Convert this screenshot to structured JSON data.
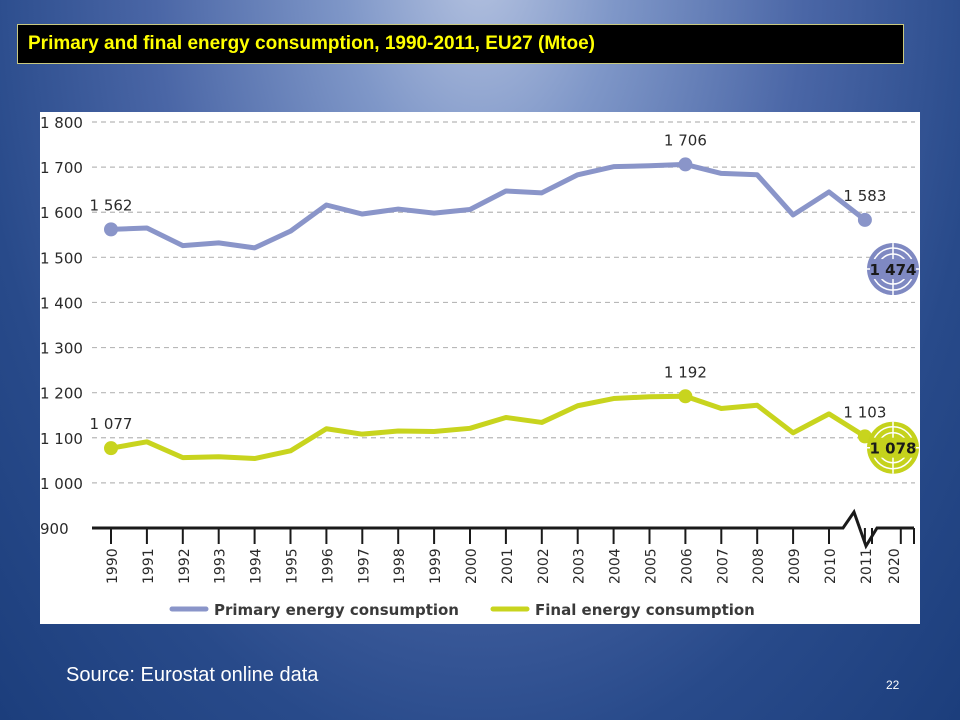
{
  "slide": {
    "title": "Primary and final energy consumption, 1990-2011, EU27 (Mtoe)",
    "source": "Source: Eurostat online data",
    "page_number": "22"
  },
  "chart_data": {
    "type": "line",
    "title": "",
    "xlabel": "",
    "ylabel": "",
    "x": [
      "1990",
      "1991",
      "1992",
      "1993",
      "1994",
      "1995",
      "1996",
      "1997",
      "1998",
      "1999",
      "2000",
      "2001",
      "2002",
      "2003",
      "2004",
      "2005",
      "2006",
      "2007",
      "2008",
      "2009",
      "2010",
      "2011"
    ],
    "x_target": "2020",
    "ylim": [
      900,
      1800
    ],
    "yticks": [
      900,
      1000,
      1100,
      1200,
      1300,
      1400,
      1500,
      1600,
      1700,
      1800
    ],
    "ytick_labels": [
      "900",
      "1 000",
      "1 100",
      "1 200",
      "1 300",
      "1 400",
      "1 500",
      "1 600",
      "1 700",
      "1 800"
    ],
    "grid": true,
    "legend_position": "bottom",
    "series": [
      {
        "name": "Primary energy consumption",
        "color": "#8a95c9",
        "values": [
          1562,
          1565,
          1526,
          1532,
          1521,
          1558,
          1616,
          1596,
          1607,
          1598,
          1606,
          1647,
          1643,
          1683,
          1701,
          1703,
          1706,
          1686,
          1683,
          1594,
          1645,
          1583
        ],
        "labels": [
          {
            "x": "1990",
            "value": 1562,
            "text": "1 562"
          },
          {
            "x": "2006",
            "value": 1706,
            "text": "1 706"
          },
          {
            "x": "2011",
            "value": 1583,
            "text": "1 583"
          }
        ],
        "target": {
          "x": "2020",
          "value": 1474,
          "text": "1 474",
          "color": "#7f89c2"
        }
      },
      {
        "name": "Final energy consumption",
        "color": "#c8d41e",
        "values": [
          1077,
          1091,
          1056,
          1058,
          1054,
          1071,
          1120,
          1108,
          1115,
          1114,
          1121,
          1145,
          1134,
          1171,
          1187,
          1191,
          1192,
          1165,
          1172,
          1111,
          1153,
          1103
        ],
        "labels": [
          {
            "x": "1990",
            "value": 1077,
            "text": "1 077"
          },
          {
            "x": "2006",
            "value": 1192,
            "text": "1 192"
          },
          {
            "x": "2011",
            "value": 1103,
            "text": "1 103"
          }
        ],
        "target": {
          "x": "2020",
          "value": 1078,
          "text": "1 078",
          "color": "#c5d21c"
        }
      }
    ]
  }
}
